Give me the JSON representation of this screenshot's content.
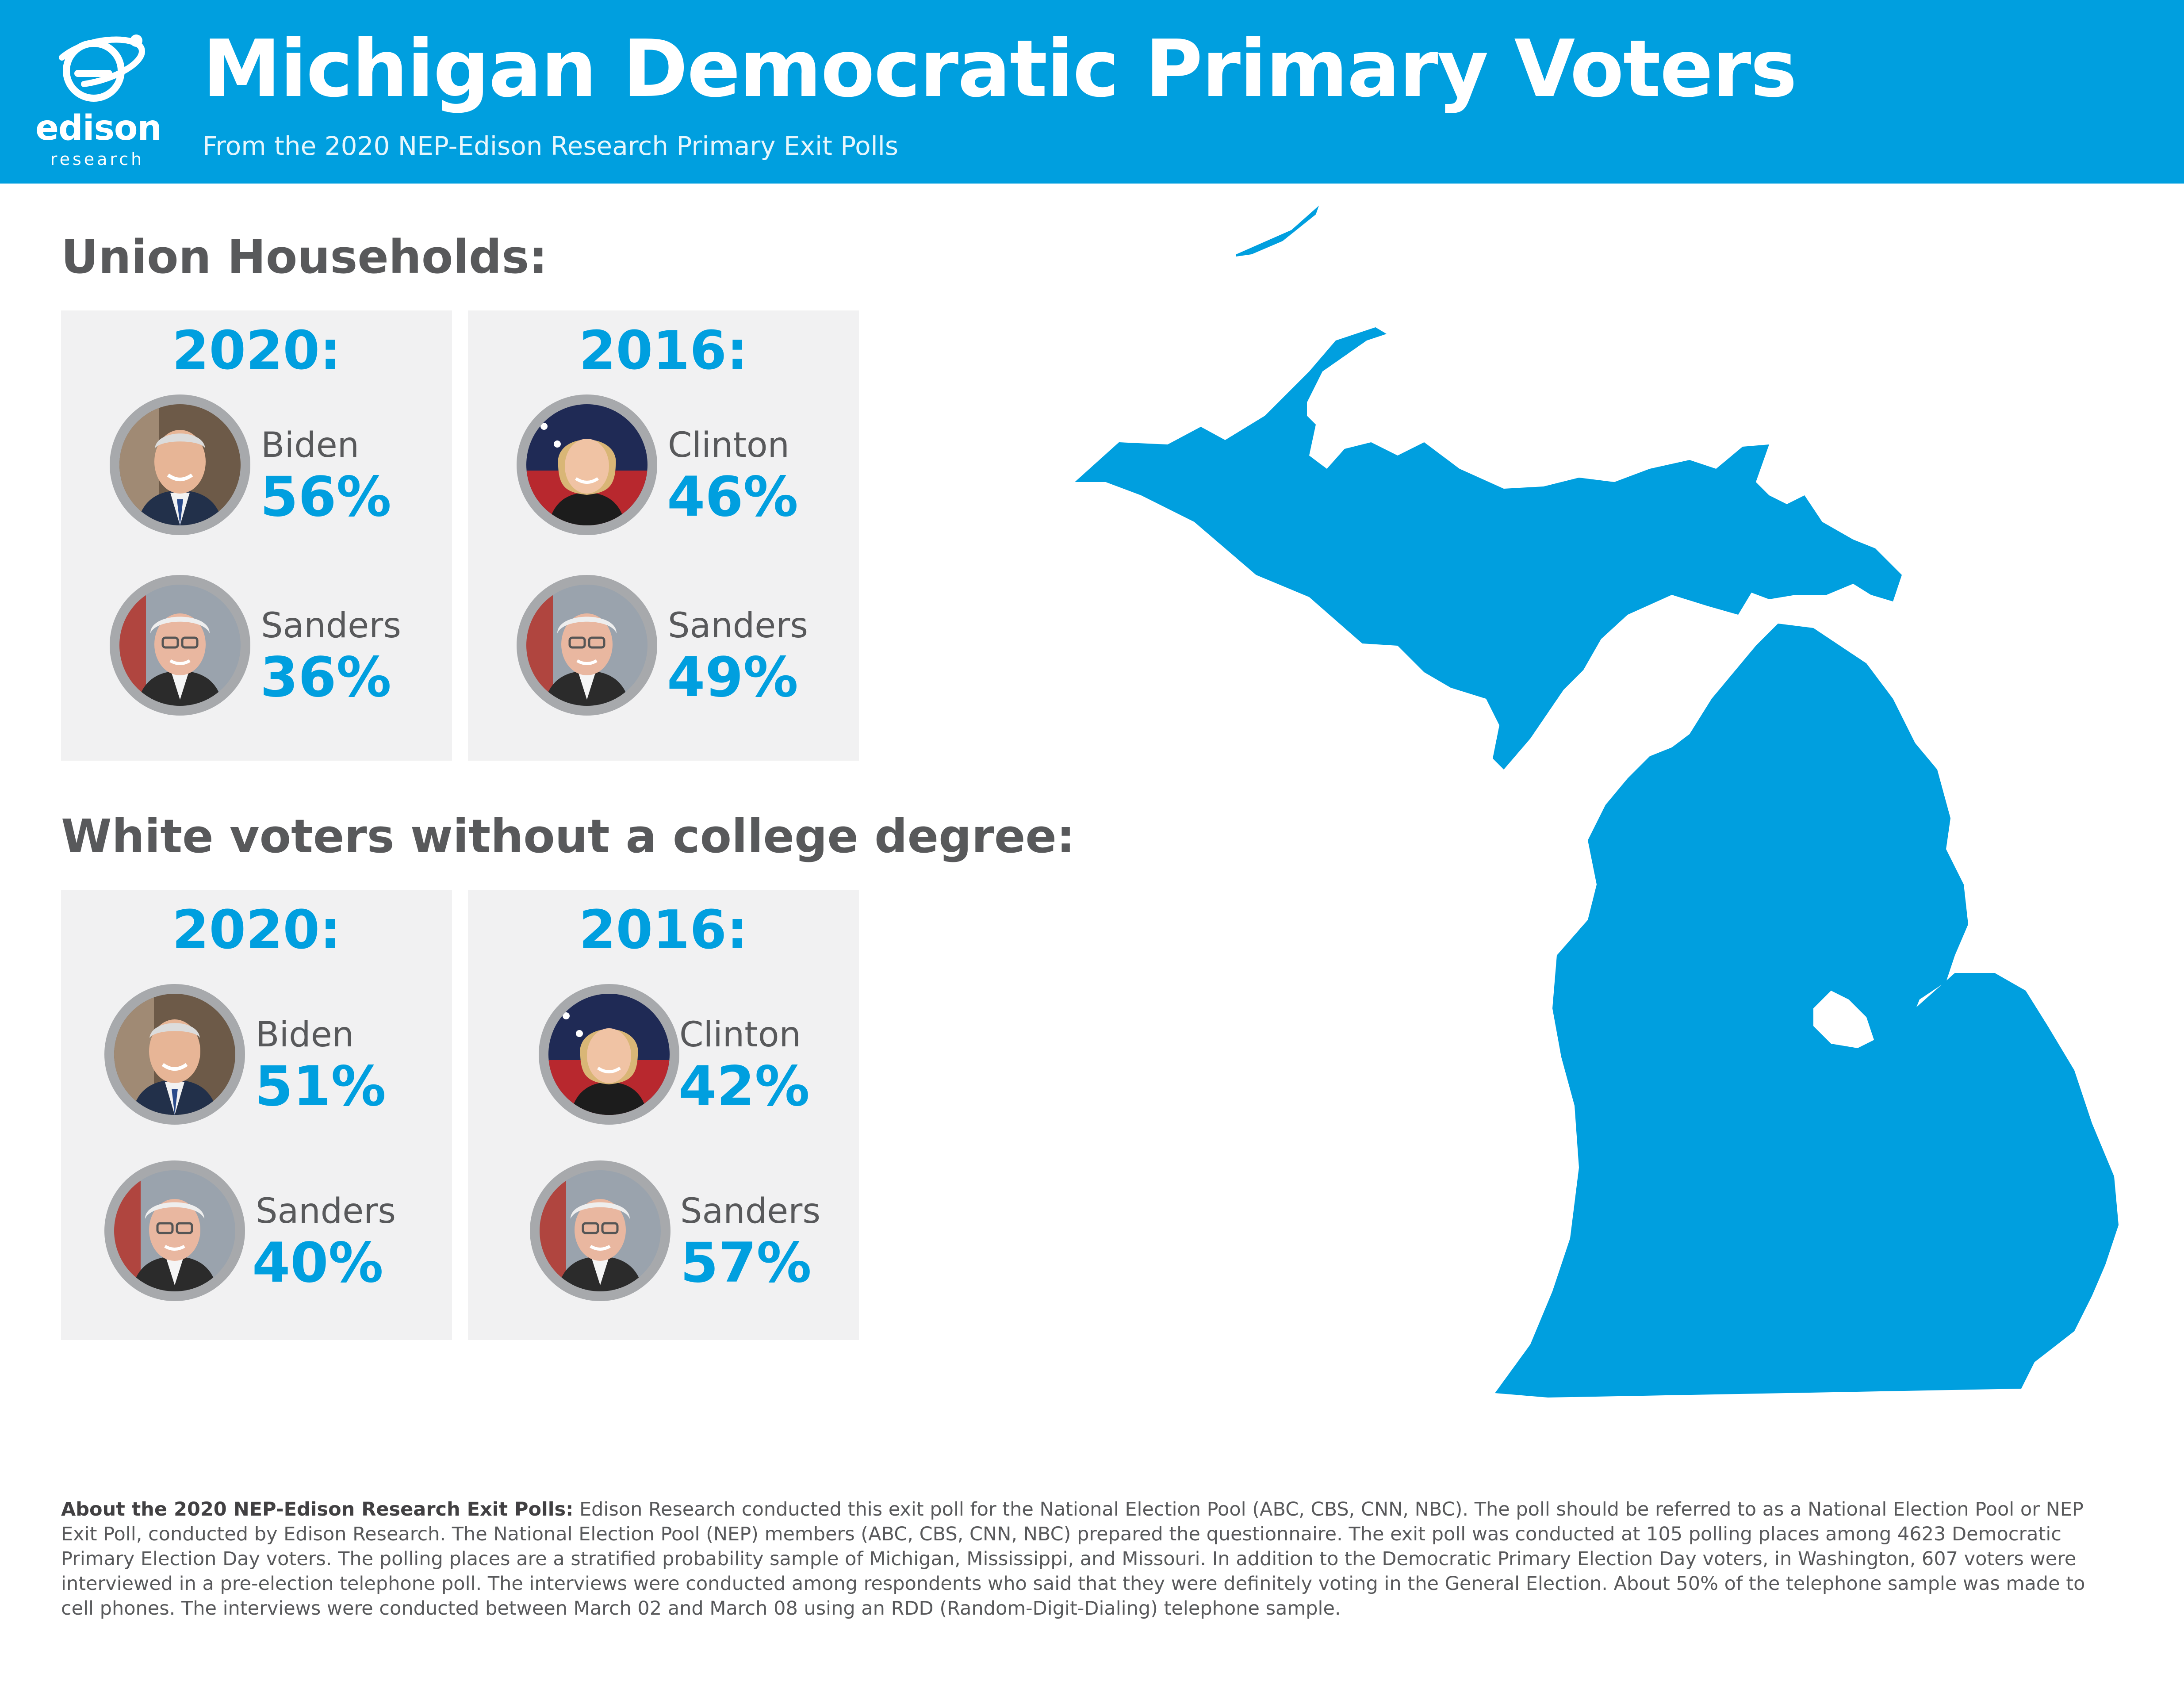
{
  "header": {
    "title": "Michigan Democratic Primary Voters",
    "subtitle": "From the 2020 NEP-Edison Research Primary Exit Polls",
    "logo_word": "edison",
    "logo_sub": "research",
    "background_color": "#009fdf"
  },
  "colors": {
    "accent": "#009fdf",
    "text_gray": "#58595b",
    "card_bg": "#f1f1f2",
    "portrait_ring": "#a7a9ac"
  },
  "sections": [
    {
      "title": "Union Households:",
      "cards": [
        {
          "year": "2020:",
          "candidates": [
            {
              "name": "Biden",
              "pct": "56%",
              "portrait": "biden-portrait"
            },
            {
              "name": "Sanders",
              "pct": "36%",
              "portrait": "sanders-portrait"
            }
          ]
        },
        {
          "year": "2016:",
          "candidates": [
            {
              "name": "Clinton",
              "pct": "46%",
              "portrait": "clinton-portrait"
            },
            {
              "name": "Sanders",
              "pct": "49%",
              "portrait": "sanders-portrait"
            }
          ]
        }
      ]
    },
    {
      "title": "White voters without a college degree:",
      "cards": [
        {
          "year": "2020:",
          "candidates": [
            {
              "name": "Biden",
              "pct": "51%",
              "portrait": "biden-portrait"
            },
            {
              "name": "Sanders",
              "pct": "40%",
              "portrait": "sanders-portrait"
            }
          ]
        },
        {
          "year": "2016:",
          "candidates": [
            {
              "name": "Clinton",
              "pct": "42%",
              "portrait": "clinton-portrait"
            },
            {
              "name": "Sanders",
              "pct": "57%",
              "portrait": "sanders-portrait"
            }
          ]
        }
      ]
    }
  ],
  "map": {
    "icon": "michigan-map",
    "color": "#009fdf"
  },
  "footer": {
    "label": "About the 2020 NEP-Edison Research Exit Polls:",
    "text": " Edison Research conducted this exit poll for the National Election Pool (ABC, CBS, CNN, NBC). The poll should be referred to as a National Election Pool or NEP Exit Poll, conducted by Edison Research. The National Election Pool (NEP) members (ABC, CBS, CNN, NBC) prepared the questionnaire. The exit poll was conducted at 105 polling places among 4623 Democratic Primary Election Day voters. The polling places are a stratified probability sample of Michigan, Mississippi, and Missouri. In addition to the Democratic Primary Election Day voters, in Washington, 607 voters were interviewed in a pre-election telephone poll.  The interviews were conducted among respondents who said that they were definitely voting in the General Election.  About 50% of the telephone sample was made to cell phones.  The interviews were conducted between March 02 and March 08 using an RDD (Random-Digit-Dialing) telephone sample."
  }
}
